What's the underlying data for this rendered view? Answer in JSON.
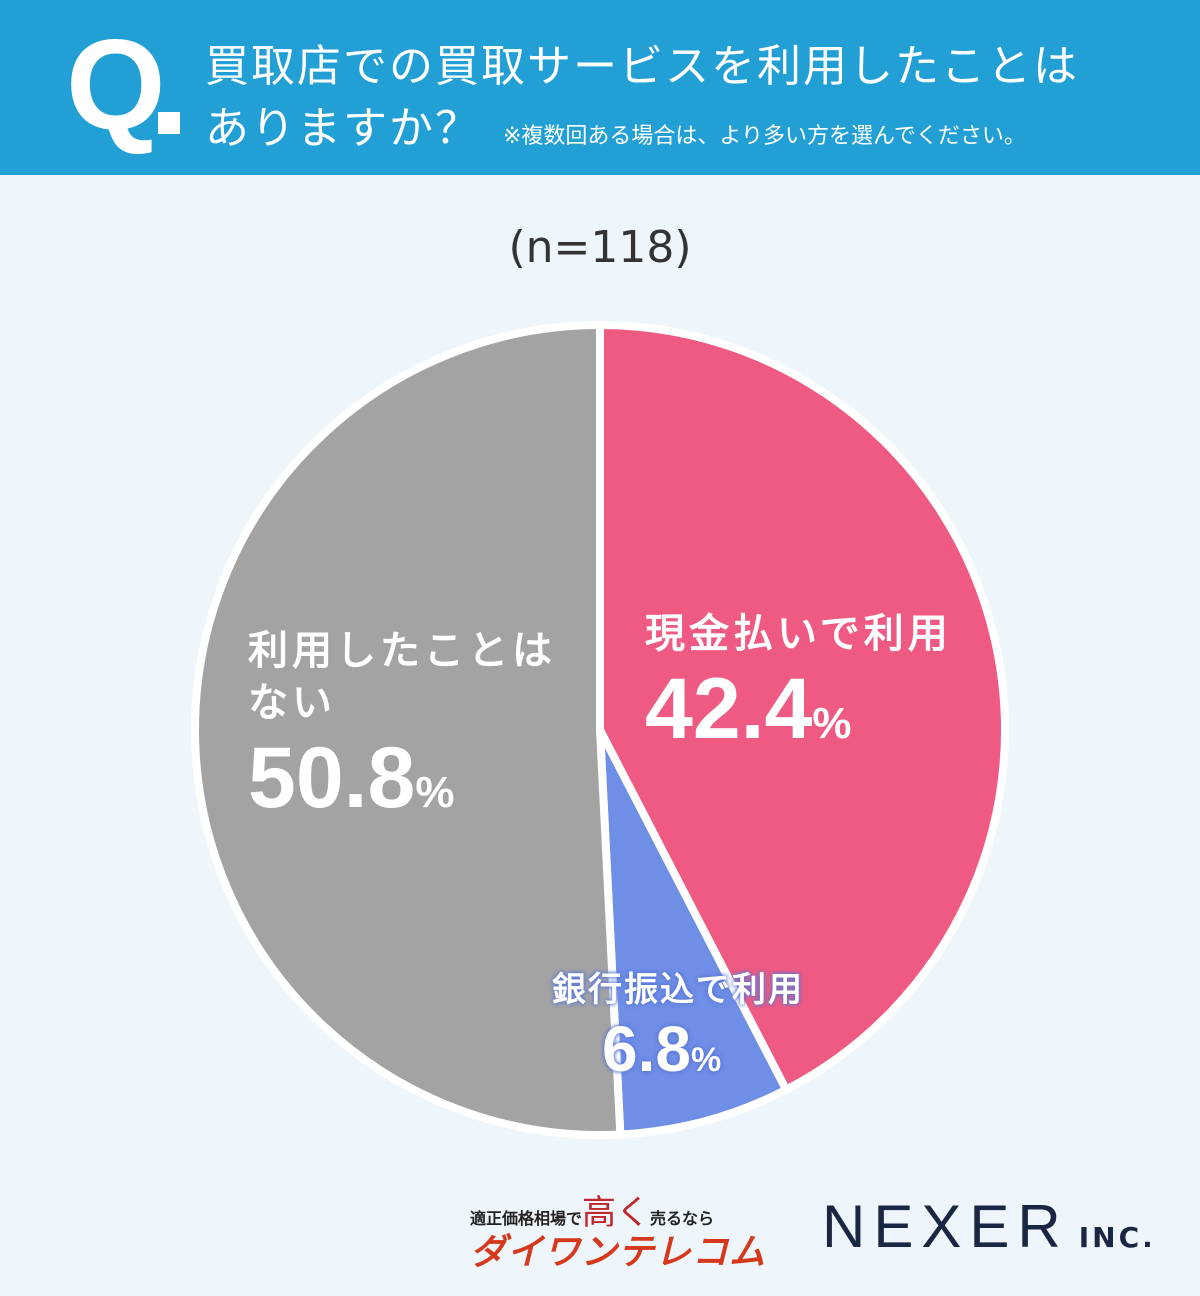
{
  "header": {
    "q_mark": "Q",
    "question_line1": "買取店での買取サービスを利用したことは",
    "question_line2": "ありますか？",
    "note": "※複数回ある場合は、より多い方を選んでください。",
    "background": "#22a0d6"
  },
  "chart_data": {
    "type": "pie",
    "sample": "(n=118)",
    "start": "top",
    "direction": "clockwise",
    "slices": [
      {
        "label": "現金払いで利用",
        "value": 42.4,
        "display": "42.4",
        "unit": "%",
        "color": "#ef5a82"
      },
      {
        "label": "銀行振込で利用",
        "value": 6.8,
        "display": "6.8",
        "unit": "%",
        "color": "#6f8ee6"
      },
      {
        "label": "利用したことはない",
        "label_line1": "利用したことは",
        "label_line2": "ない",
        "value": 50.8,
        "display": "50.8",
        "unit": "%",
        "color": "#a3a3a3"
      }
    ]
  },
  "footer": {
    "logo1_tag": "適正価格相場で",
    "logo1_taka": "高く",
    "logo1_tag2": "売るなら",
    "logo1_brand": "ダイワンテレコム",
    "logo2_name": "NEXER",
    "logo2_suffix": "INC."
  }
}
